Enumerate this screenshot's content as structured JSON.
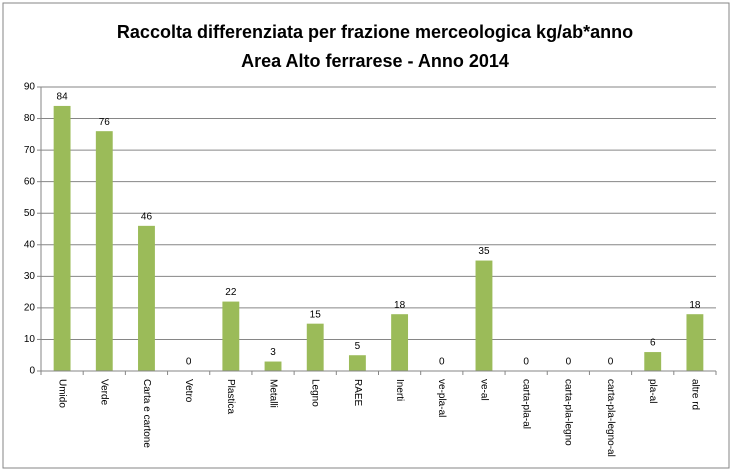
{
  "chart_data": {
    "type": "bar",
    "title": "Raccolta differenziata per frazione merceologica kg/ab*anno",
    "subtitle": "Area Alto ferrarese - Anno 2014",
    "categories": [
      "Umido",
      "Verde",
      "Carta e cartone",
      "Vetro",
      "Plastica",
      "Metalli",
      "Legno",
      "RAEE",
      "Inerti",
      "ve-pla-al",
      "ve-al",
      "carta-pla-al",
      "carta-pla-legno",
      "carta-pla-legno-al",
      "pla-al",
      "altre rd"
    ],
    "values": [
      84,
      76,
      46,
      0,
      22,
      3,
      15,
      5,
      18,
      0,
      35,
      0,
      0,
      0,
      6,
      18
    ],
    "color": "#9bbb59",
    "ylim": [
      0,
      90
    ],
    "yticks": [
      0,
      10,
      20,
      30,
      40,
      50,
      60,
      70,
      80,
      90
    ],
    "grid": true
  }
}
